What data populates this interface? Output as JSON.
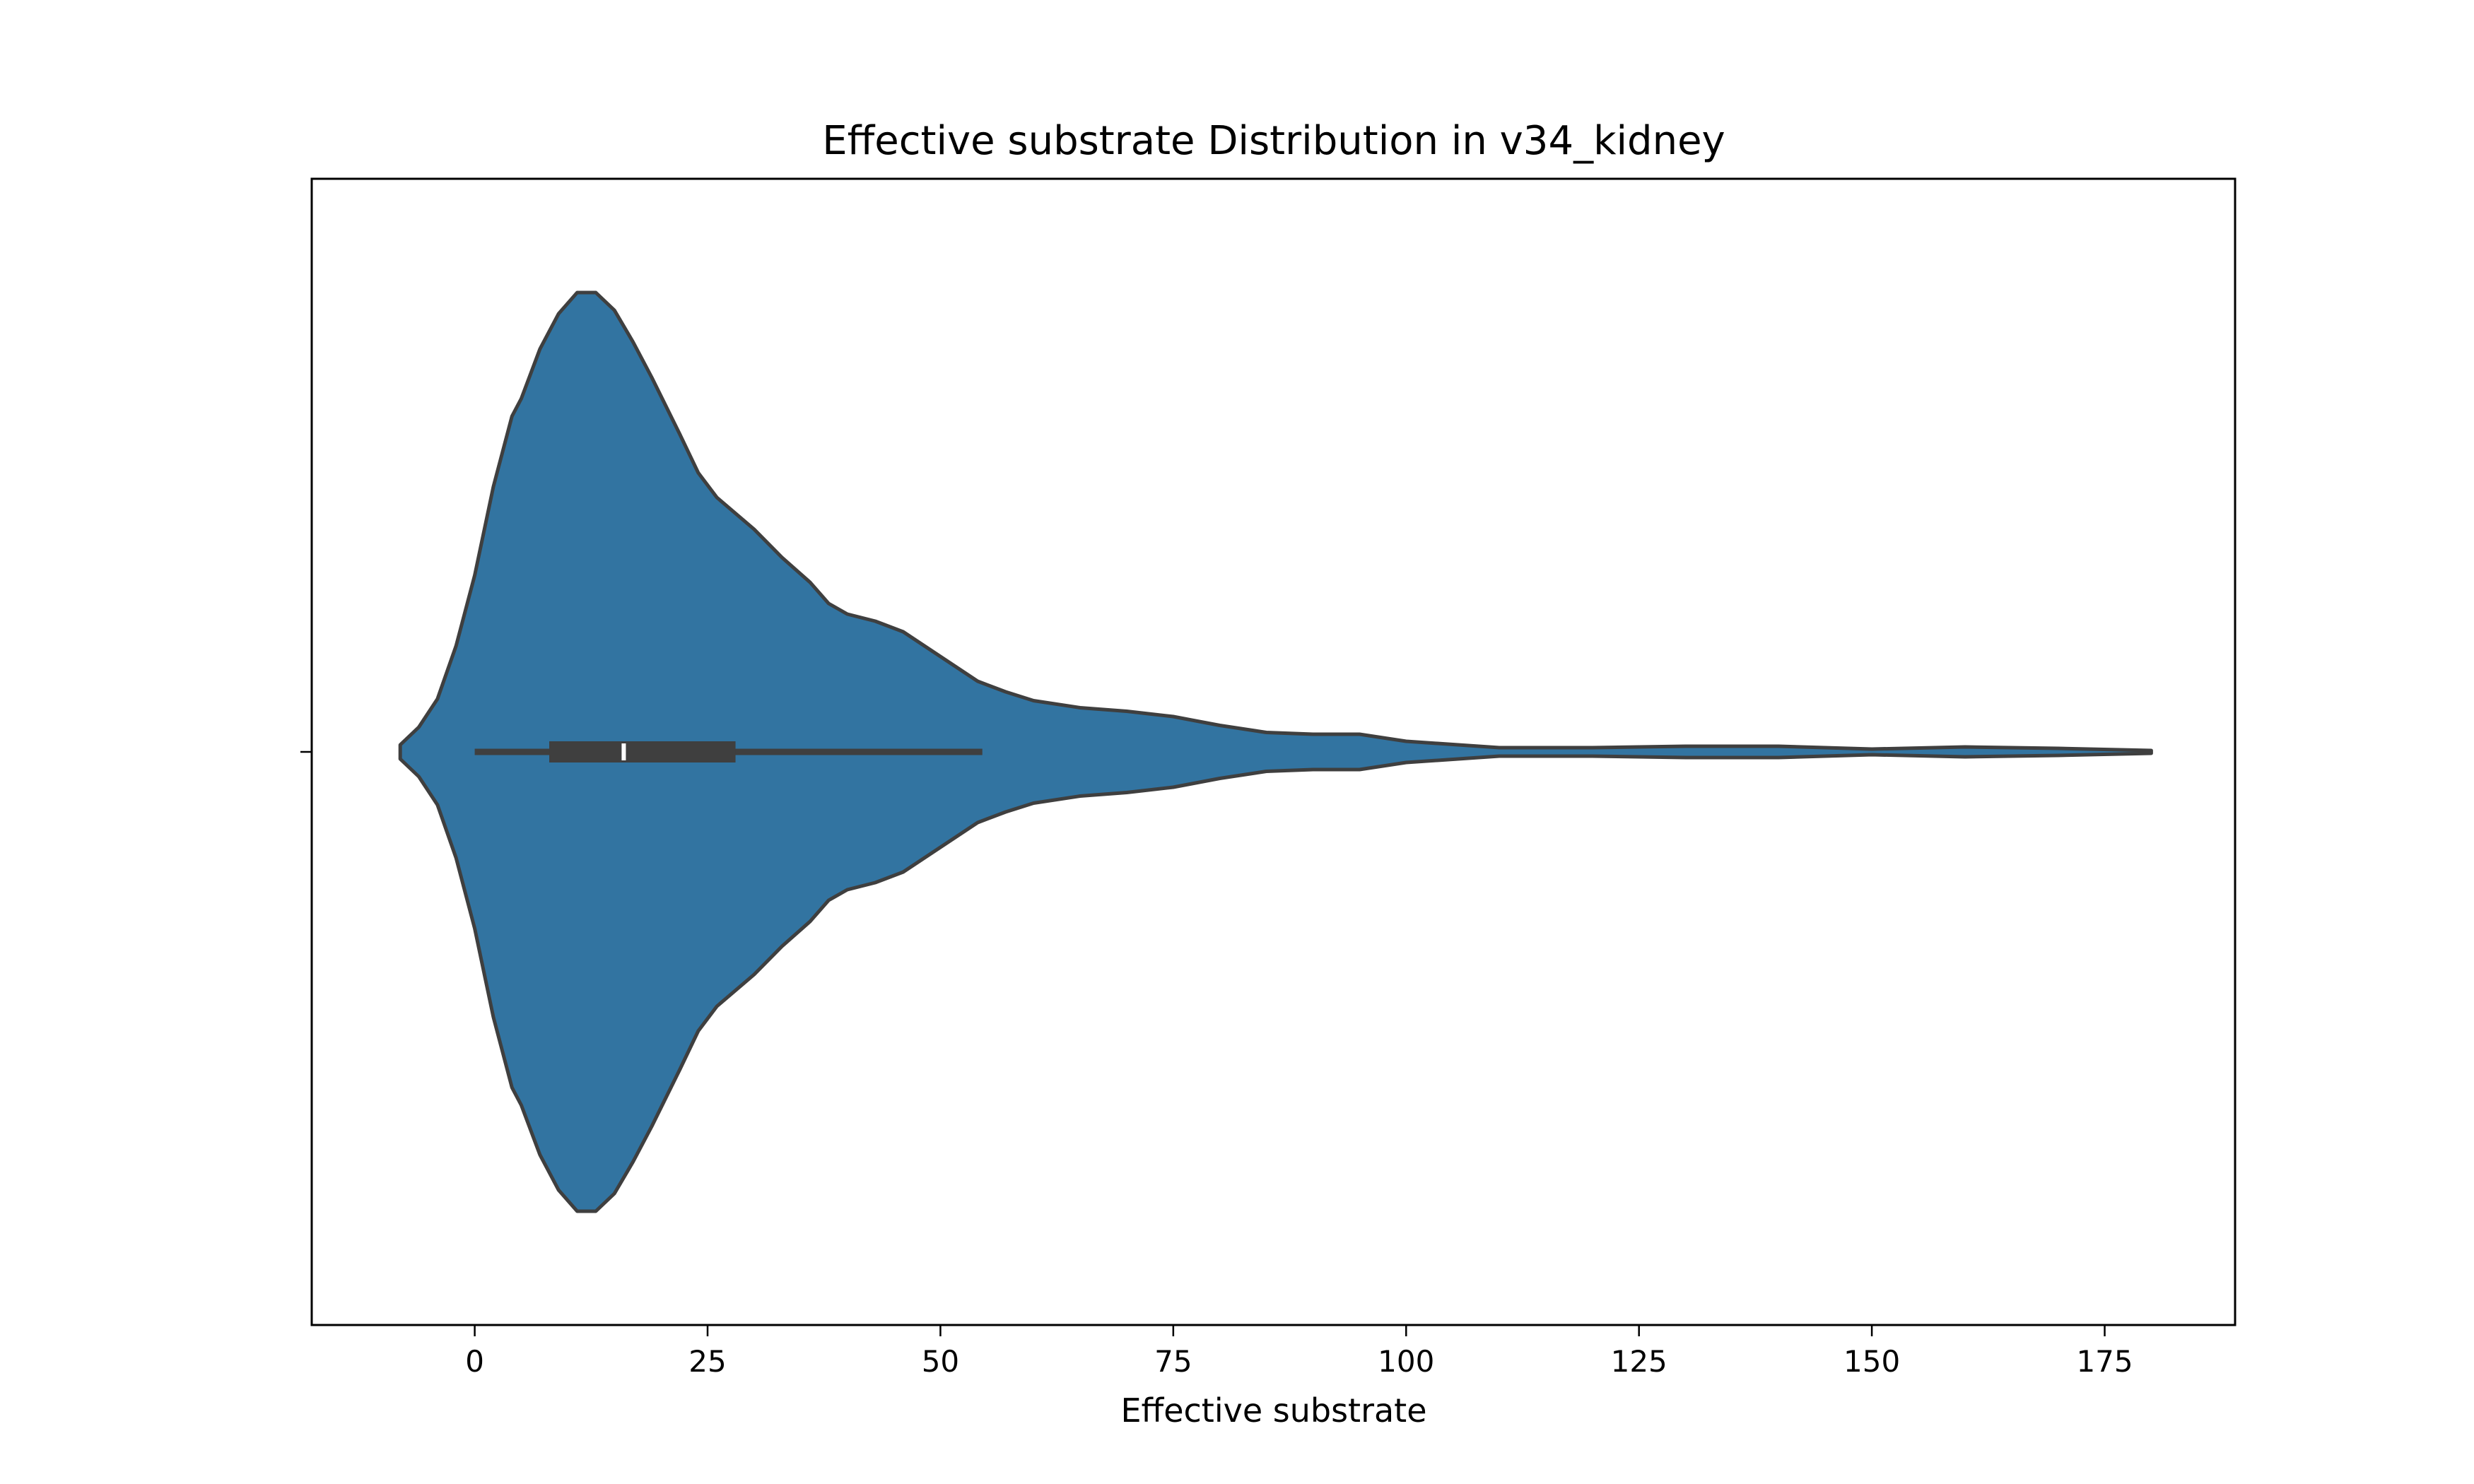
{
  "chart_data": {
    "type": "violin",
    "title": "Effective substrate Distribution in v34_kidney",
    "xlabel": "Effective substrate",
    "ylabel": "",
    "xlim": [
      -17.5,
      189
    ],
    "x_ticks": [
      0,
      25,
      50,
      75,
      100,
      125,
      150,
      175
    ],
    "orientation": "horizontal",
    "grid": false,
    "colors": {
      "violin_fill": "#3274a1",
      "violin_edge": "#3f3f3f",
      "box": "#3f3f3f",
      "median": "#ffffff"
    },
    "box_stats": {
      "whisker_low": 0,
      "q1": 8,
      "median": 16,
      "q3": 28,
      "whisker_high": 54.5
    },
    "density": {
      "x": [
        -8,
        -6,
        -4,
        -2,
        0,
        2,
        4,
        5,
        7,
        9,
        11,
        13,
        15,
        17,
        19,
        22,
        24,
        26,
        30,
        33,
        36,
        38,
        40,
        43,
        46,
        50,
        54,
        57,
        60,
        65,
        70,
        75,
        80,
        85,
        90,
        95,
        100,
        110,
        120,
        130,
        140,
        150,
        160,
        170,
        180
      ],
      "width": [
        0.02,
        0.07,
        0.15,
        0.3,
        0.5,
        0.75,
        0.95,
        1.0,
        1.14,
        1.24,
        1.3,
        1.3,
        1.25,
        1.16,
        1.06,
        0.9,
        0.79,
        0.72,
        0.63,
        0.55,
        0.48,
        0.42,
        0.39,
        0.37,
        0.34,
        0.27,
        0.2,
        0.17,
        0.145,
        0.125,
        0.115,
        0.1,
        0.075,
        0.055,
        0.05,
        0.05,
        0.03,
        0.012,
        0.012,
        0.016,
        0.016,
        0.008,
        0.014,
        0.01,
        0.004
      ]
    }
  }
}
